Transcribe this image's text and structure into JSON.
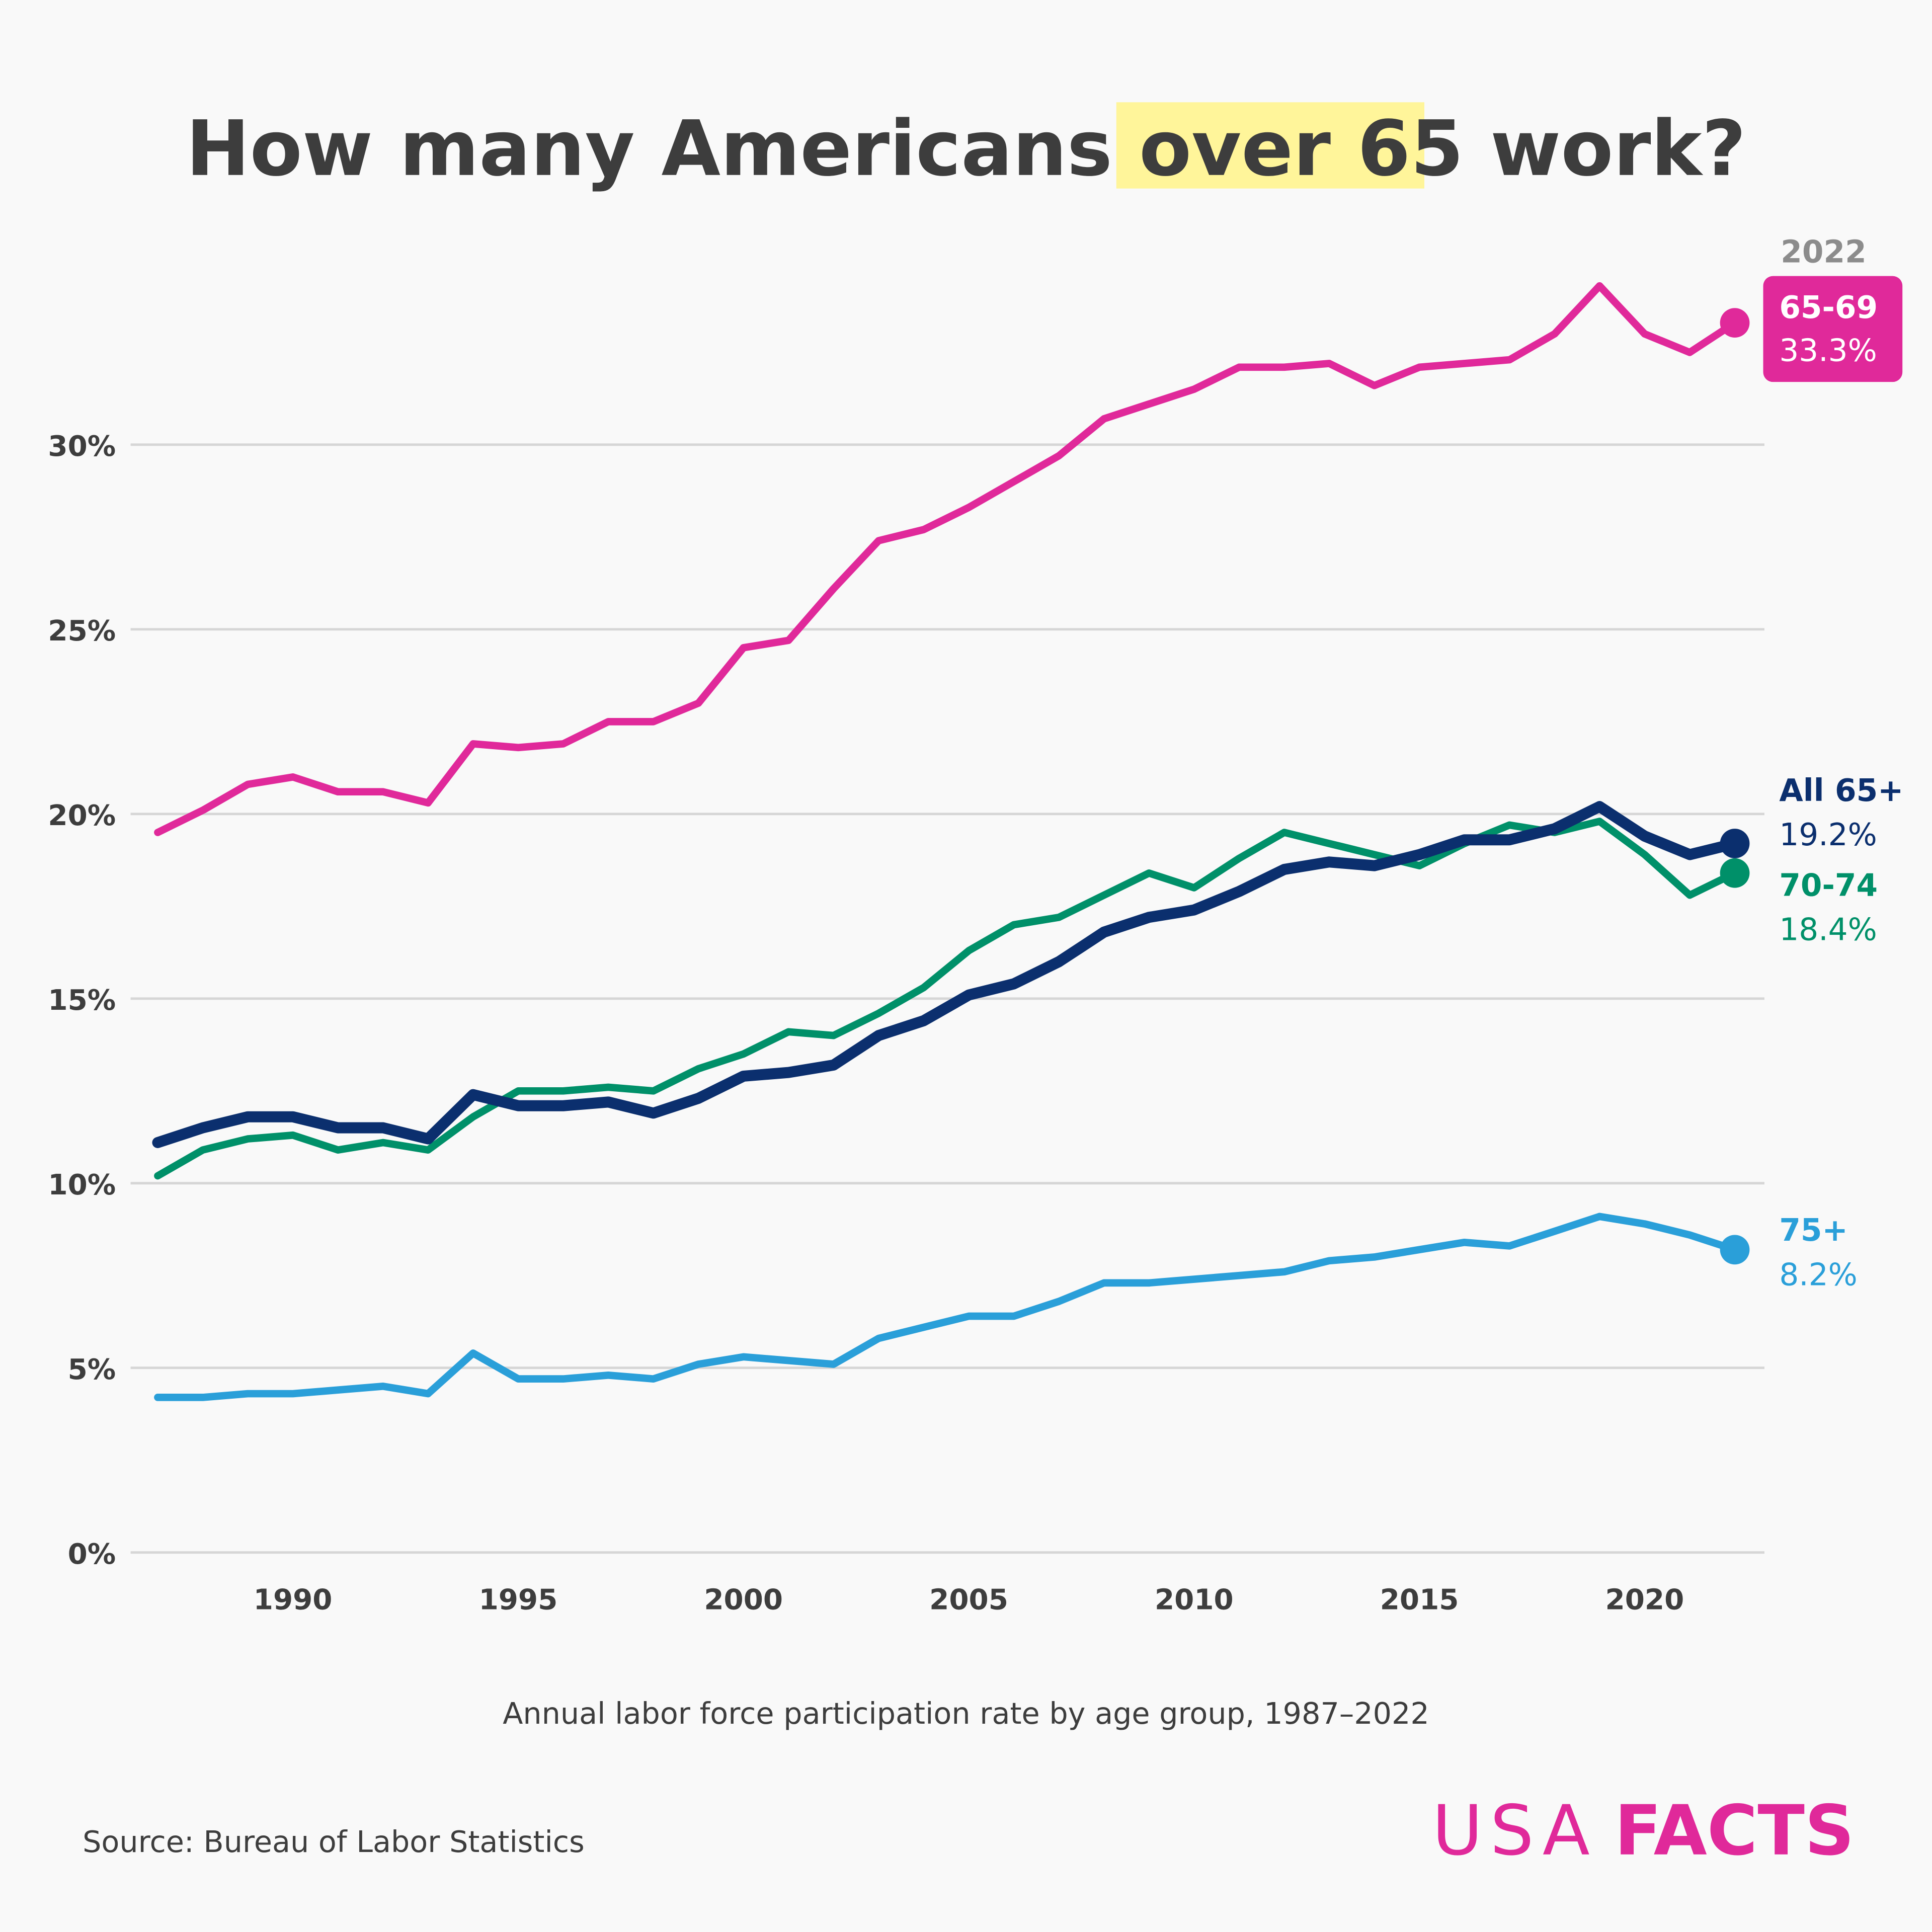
{
  "title": {
    "pre": "How many Americans ",
    "highlight": "over 65",
    "post": " work?"
  },
  "subtitle": "Annual labor force participation rate by age group, 1987–2022",
  "source": "Source: Bureau of Labor Statistics",
  "logo": {
    "part1": "USA",
    "part2": "FACTS"
  },
  "end_year_label": "2022",
  "colors": {
    "title": "#3d3d3d",
    "highlight": "#fff59a",
    "logo": "#e0299a",
    "background": "#f9f9f9"
  },
  "chart_data": {
    "type": "line",
    "title": "How many Americans over 65 work?",
    "subtitle": "Annual labor force participation rate by age group, 1987–2022",
    "xlabel": "",
    "ylabel": "",
    "ylim": [
      0,
      35
    ],
    "xlim": [
      1987,
      2022
    ],
    "grid": true,
    "y_ticks": [
      "0%",
      "5%",
      "10%",
      "15%",
      "20%",
      "25%",
      "30%"
    ],
    "y_tick_values": [
      0,
      5,
      10,
      15,
      20,
      25,
      30
    ],
    "x_ticks": [
      "1990",
      "1995",
      "2000",
      "2005",
      "2010",
      "2015",
      "2020"
    ],
    "x": [
      1987,
      1988,
      1989,
      1990,
      1991,
      1992,
      1993,
      1994,
      1995,
      1996,
      1997,
      1998,
      1999,
      2000,
      2001,
      2002,
      2003,
      2004,
      2005,
      2006,
      2007,
      2008,
      2009,
      2010,
      2011,
      2012,
      2013,
      2014,
      2015,
      2016,
      2017,
      2018,
      2019,
      2020,
      2021,
      2022
    ],
    "series": [
      {
        "name": "65-69",
        "end_label": "33.3%",
        "color": "#e0299a",
        "values": [
          19.5,
          20.1,
          20.8,
          21.0,
          20.6,
          20.6,
          20.3,
          21.9,
          21.8,
          21.9,
          22.5,
          22.5,
          23.0,
          24.5,
          24.7,
          26.1,
          27.4,
          27.7,
          28.3,
          29.0,
          29.7,
          30.7,
          31.1,
          31.5,
          32.1,
          32.1,
          32.2,
          31.6,
          32.1,
          32.2,
          32.3,
          33.0,
          34.3,
          33.0,
          32.5,
          33.3
        ]
      },
      {
        "name": "70-74",
        "end_label": "18.4%",
        "color": "#009069",
        "values": [
          10.2,
          10.9,
          11.2,
          11.3,
          10.9,
          11.1,
          10.9,
          11.8,
          12.5,
          12.5,
          12.6,
          12.5,
          13.1,
          13.5,
          14.1,
          14.0,
          14.6,
          15.3,
          16.3,
          17.0,
          17.2,
          17.8,
          18.4,
          18.0,
          18.8,
          19.5,
          19.2,
          18.9,
          18.6,
          19.2,
          19.7,
          19.5,
          19.8,
          18.9,
          17.8,
          18.4
        ]
      },
      {
        "name": "All 65+",
        "end_label": "19.2%",
        "color": "#0b2f6e",
        "values": [
          11.1,
          11.5,
          11.8,
          11.8,
          11.5,
          11.5,
          11.2,
          12.4,
          12.1,
          12.1,
          12.2,
          11.9,
          12.3,
          12.9,
          13.0,
          13.2,
          14.0,
          14.4,
          15.1,
          15.4,
          16.0,
          16.8,
          17.2,
          17.4,
          17.9,
          18.5,
          18.7,
          18.6,
          18.9,
          19.3,
          19.3,
          19.6,
          20.2,
          19.4,
          18.9,
          19.2
        ]
      },
      {
        "name": "75+",
        "end_label": "8.2%",
        "color": "#2a9fd9",
        "values": [
          4.2,
          4.2,
          4.3,
          4.3,
          4.4,
          4.5,
          4.3,
          5.4,
          4.7,
          4.7,
          4.8,
          4.7,
          5.1,
          5.3,
          5.2,
          5.1,
          5.8,
          6.1,
          6.4,
          6.4,
          6.8,
          7.3,
          7.3,
          7.4,
          7.5,
          7.6,
          7.9,
          8.0,
          8.2,
          8.4,
          8.3,
          8.7,
          9.1,
          8.9,
          8.6,
          8.2
        ]
      }
    ]
  }
}
